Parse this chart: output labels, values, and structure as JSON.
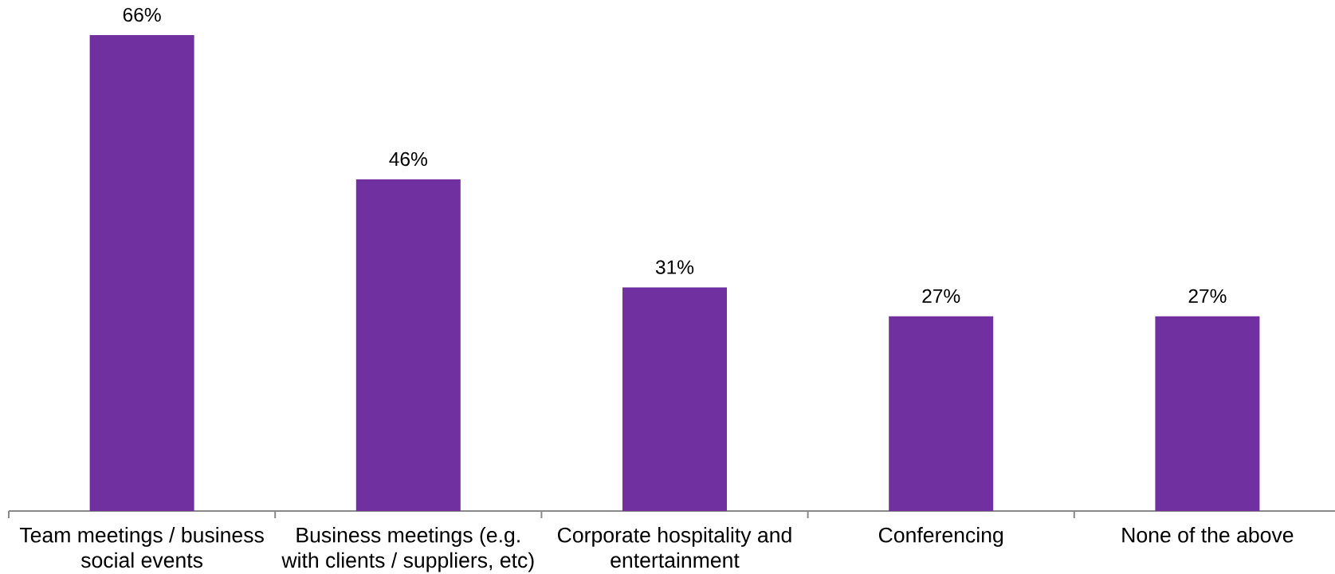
{
  "chart_data": {
    "type": "bar",
    "categories": [
      "Team meetings / business social events",
      "Business meetings (e.g. with clients / suppliers, etc)",
      "Corporate hospitality and entertainment",
      "Conferencing",
      "None of the above"
    ],
    "values": [
      66,
      46,
      31,
      27,
      27
    ],
    "value_labels": [
      "66%",
      "46%",
      "31%",
      "27%",
      "27%"
    ],
    "color": "#7030a0"
  }
}
